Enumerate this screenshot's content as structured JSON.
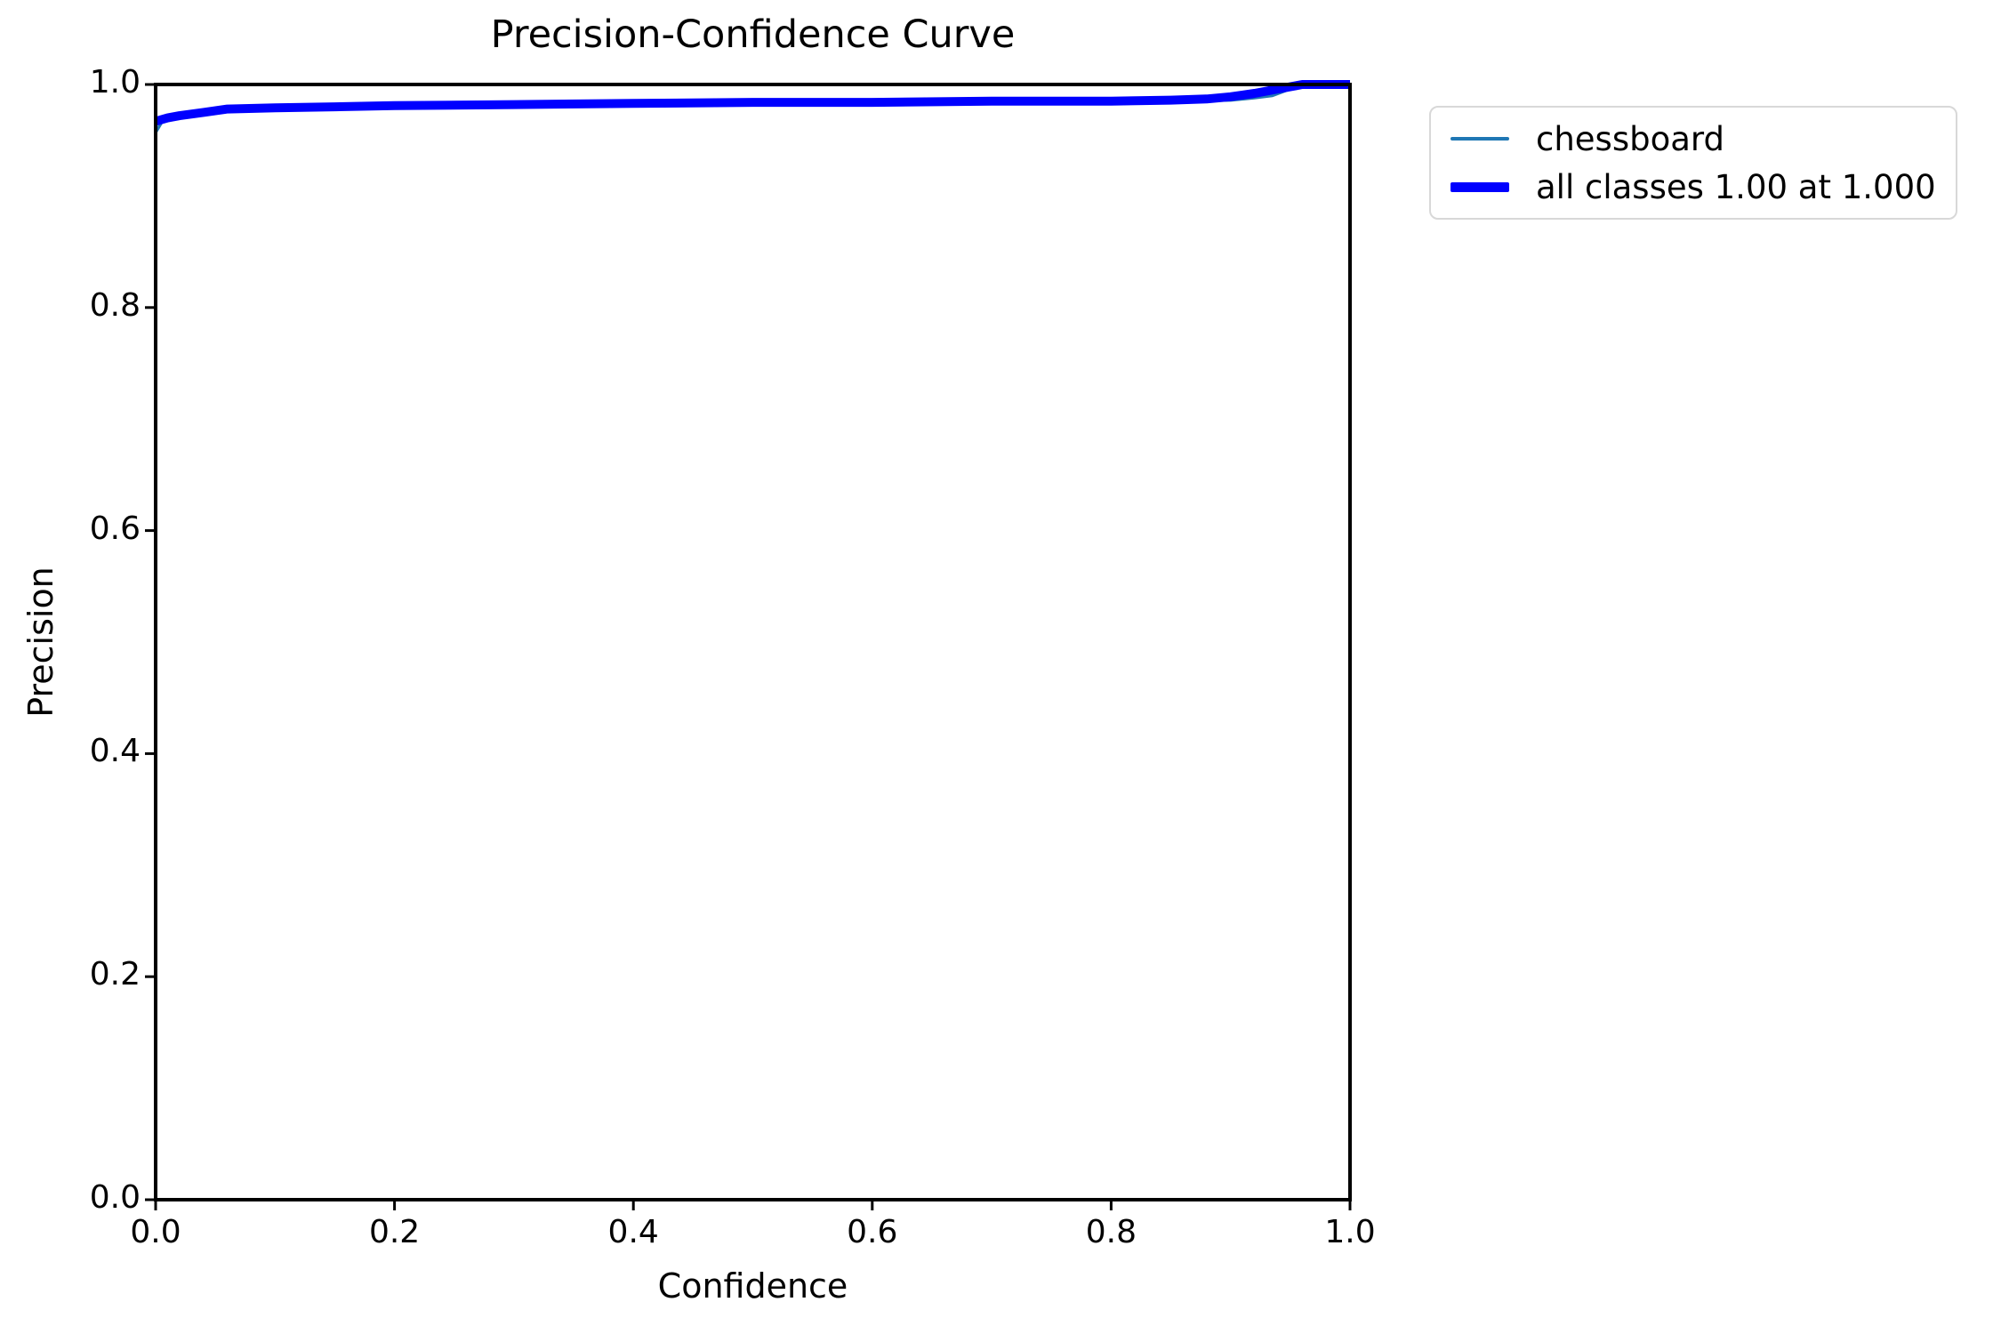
{
  "chart_data": {
    "type": "line",
    "title": "Precision-Confidence Curve",
    "xlabel": "Confidence",
    "ylabel": "Precision",
    "xlim": [
      0.0,
      1.0
    ],
    "ylim": [
      0.0,
      1.0
    ],
    "x_ticks": [
      "0.0",
      "0.2",
      "0.4",
      "0.6",
      "0.8",
      "1.0"
    ],
    "y_ticks": [
      "0.0",
      "0.2",
      "0.4",
      "0.6",
      "0.8",
      "1.0"
    ],
    "grid": false,
    "legend_position": "upper-right-outside",
    "axis_color": "#000000",
    "series": [
      {
        "name": "chessboard",
        "color": "#1f77b4",
        "line_width": 3.5,
        "points": [
          [
            0.0,
            0.957
          ],
          [
            0.005,
            0.966
          ],
          [
            0.01,
            0.97
          ],
          [
            0.02,
            0.972
          ],
          [
            0.04,
            0.975
          ],
          [
            0.06,
            0.978
          ],
          [
            0.1,
            0.979
          ],
          [
            0.15,
            0.98
          ],
          [
            0.2,
            0.98
          ],
          [
            0.3,
            0.982
          ],
          [
            0.4,
            0.982
          ],
          [
            0.5,
            0.983
          ],
          [
            0.6,
            0.984
          ],
          [
            0.7,
            0.984
          ],
          [
            0.8,
            0.985
          ],
          [
            0.85,
            0.985
          ],
          [
            0.9,
            0.986
          ],
          [
            0.92,
            0.988
          ],
          [
            0.935,
            0.99
          ],
          [
            0.95,
            0.996
          ],
          [
            0.965,
            1.0
          ],
          [
            1.0,
            1.0
          ]
        ]
      },
      {
        "name": "all classes 1.00 at 1.000",
        "color": "#0000ff",
        "line_width": 10,
        "points": [
          [
            0.0,
            0.967
          ],
          [
            0.01,
            0.97
          ],
          [
            0.02,
            0.972
          ],
          [
            0.04,
            0.975
          ],
          [
            0.06,
            0.978
          ],
          [
            0.1,
            0.979
          ],
          [
            0.15,
            0.98
          ],
          [
            0.2,
            0.981
          ],
          [
            0.3,
            0.982
          ],
          [
            0.4,
            0.983
          ],
          [
            0.5,
            0.984
          ],
          [
            0.6,
            0.984
          ],
          [
            0.7,
            0.985
          ],
          [
            0.8,
            0.985
          ],
          [
            0.85,
            0.986
          ],
          [
            0.88,
            0.987
          ],
          [
            0.9,
            0.989
          ],
          [
            0.92,
            0.992
          ],
          [
            0.94,
            0.996
          ],
          [
            0.955,
            0.999
          ],
          [
            0.96,
            1.0
          ],
          [
            1.0,
            1.0
          ]
        ]
      }
    ]
  },
  "legend": {
    "items": [
      {
        "label": "chessboard",
        "color": "#1f77b4",
        "sample_thickness": 4
      },
      {
        "label": "all classes 1.00 at 1.000",
        "color": "#0000ff",
        "sample_thickness": 11
      }
    ]
  }
}
